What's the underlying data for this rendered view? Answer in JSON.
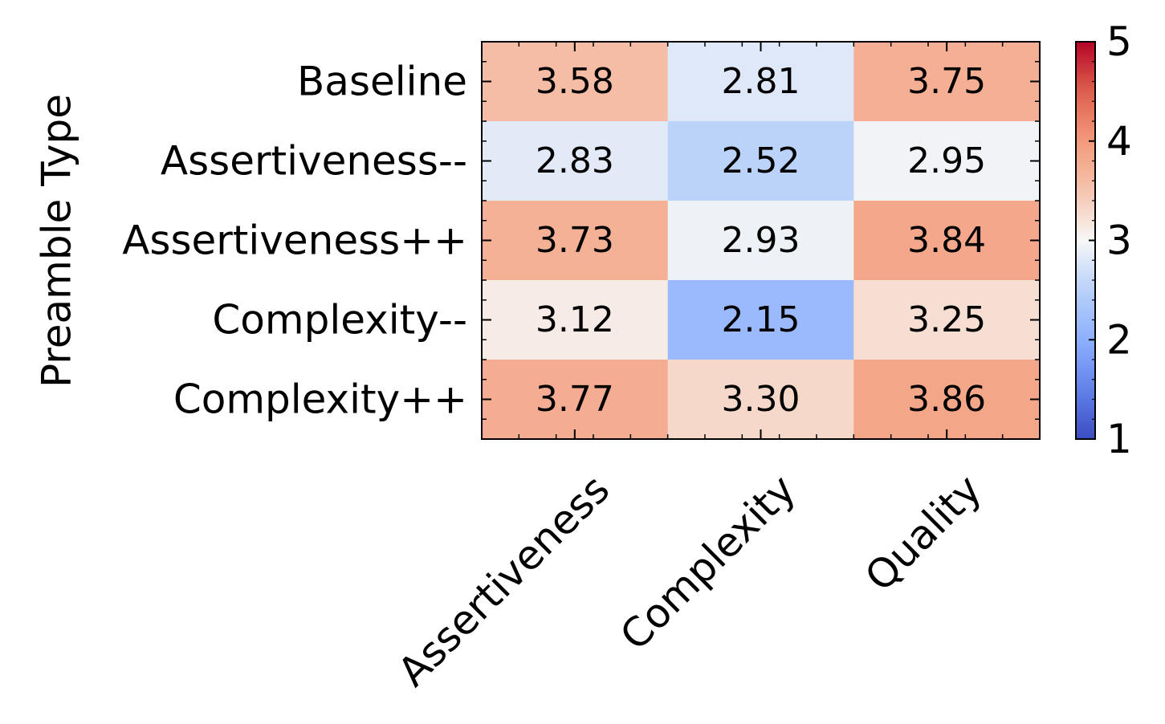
{
  "chart_data": {
    "type": "heatmap",
    "title": "",
    "xlabel": "",
    "ylabel": "Preamble Type",
    "rows": [
      "Baseline",
      "Assertiveness--",
      "Assertiveness++",
      "Complexity--",
      "Complexity++"
    ],
    "columns": [
      "Assertiveness",
      "Complexity",
      "Quality"
    ],
    "values": [
      [
        3.58,
        2.81,
        3.75
      ],
      [
        2.83,
        2.52,
        2.95
      ],
      [
        3.73,
        2.93,
        3.84
      ],
      [
        3.12,
        2.15,
        3.25
      ],
      [
        3.77,
        3.3,
        3.86
      ]
    ],
    "value_labels": [
      [
        "3.58",
        "2.81",
        "3.75"
      ],
      [
        "2.83",
        "2.52",
        "2.95"
      ],
      [
        "3.73",
        "2.93",
        "3.84"
      ],
      [
        "3.12",
        "2.15",
        "3.25"
      ],
      [
        "3.77",
        "3.30",
        "3.86"
      ]
    ],
    "colormap": "coolwarm",
    "vmin": 1,
    "vmax": 5,
    "colorbar_ticks": [
      "1",
      "2",
      "3",
      "4",
      "5"
    ],
    "colors": {
      "low": "#3b4cc0",
      "mid": "#f7f7f7",
      "high": "#b40426"
    }
  }
}
